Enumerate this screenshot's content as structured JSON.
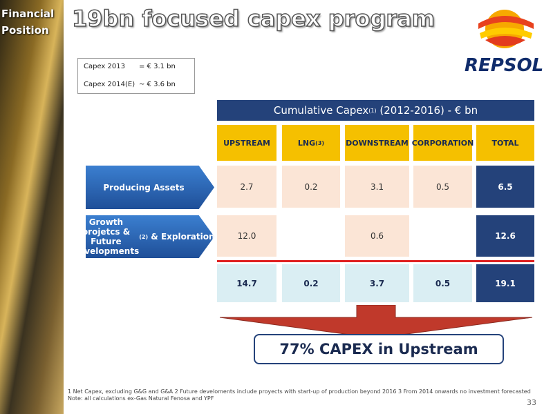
{
  "sidebar": {
    "section": "Financial Position"
  },
  "title": "19bn focused capex program",
  "logo": "REPSOL",
  "summary": [
    [
      "Capex 2013",
      "= € 3.1 bn"
    ],
    [
      "Capex 2014(E)",
      "~ € 3.6 bn"
    ]
  ],
  "table": {
    "title": {
      "text": "Cumulative Capex",
      "sup": "(1)",
      "rest": " (2012-2016) - € bn"
    },
    "columns": [
      {
        "text": "UPSTREAM"
      },
      {
        "text": "LNG",
        "sup": "(3)"
      },
      {
        "text": "DOWNSTREAM"
      },
      {
        "text": "CORPORATION"
      },
      {
        "text": "TOTAL"
      }
    ],
    "rows": [
      {
        "label": {
          "text": "Producing Assets"
        },
        "cells": [
          "2.7",
          "0.2",
          "3.1",
          "0.5",
          "6.5"
        ]
      },
      {
        "label": {
          "text": "Growth projetcs & Future developments",
          "sup": "(2)",
          "rest": " & Exploration"
        },
        "cells": [
          "12.0",
          null,
          "0.6",
          null,
          "12.6"
        ]
      }
    ],
    "totals": [
      "14.7",
      "0.2",
      "3.7",
      "0.5",
      "19.1"
    ]
  },
  "callout": "77% CAPEX in Upstream",
  "footnotes": [
    "1 Net Capex, excluding G&G and G&A   2 Future develoments include proyects with start-up of production beyond 2016   3 From 2014 onwards no investment forecasted",
    "Note: all calculations ex-Gas Natural Fenosa and YPF"
  ],
  "page": "33"
}
